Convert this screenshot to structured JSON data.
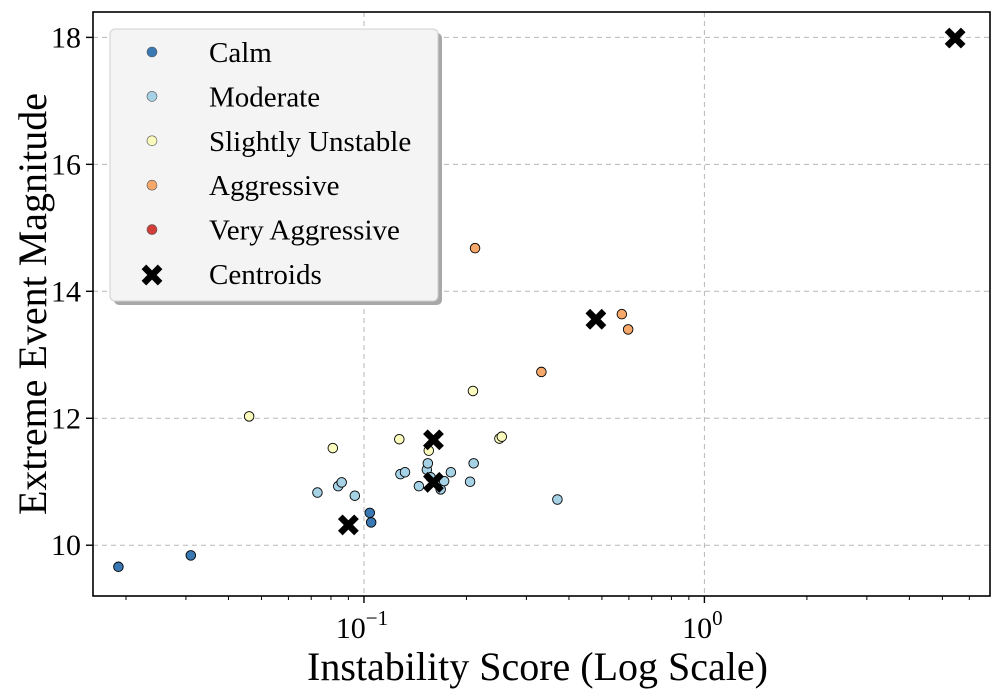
{
  "chart_data": {
    "type": "scatter",
    "title": "",
    "xlabel": "Instability Score (Log Scale)",
    "ylabel": "Extreme Event Magnitude",
    "xscale": "log",
    "xlim": [
      0.016,
      6.9
    ],
    "ylim": [
      9.2,
      18.4
    ],
    "grid": true,
    "legend_position": "top-left",
    "x_ticks": [
      {
        "value": 0.1,
        "base": "10",
        "exp": "−1"
      },
      {
        "value": 1,
        "base": "10",
        "exp": "0"
      }
    ],
    "y_ticks": [
      {
        "value": 10,
        "label": "10"
      },
      {
        "value": 12,
        "label": "12"
      },
      {
        "value": 14,
        "label": "14"
      },
      {
        "value": 16,
        "label": "16"
      },
      {
        "value": 18,
        "label": "18"
      }
    ],
    "series": [
      {
        "name": "Calm",
        "color": "#3a78b4",
        "marker": "circle",
        "points": [
          [
            0.019,
            9.66
          ],
          [
            0.031,
            9.84
          ],
          [
            0.104,
            10.51
          ],
          [
            0.105,
            10.36
          ]
        ]
      },
      {
        "name": "Moderate",
        "color": "#a6d2e6",
        "marker": "circle",
        "points": [
          [
            0.073,
            10.83
          ],
          [
            0.084,
            10.93
          ],
          [
            0.086,
            10.99
          ],
          [
            0.094,
            10.78
          ],
          [
            0.128,
            11.12
          ],
          [
            0.132,
            11.15
          ],
          [
            0.145,
            10.93
          ],
          [
            0.153,
            11.19
          ],
          [
            0.154,
            11.29
          ],
          [
            0.157,
            11.07
          ],
          [
            0.163,
            10.99
          ],
          [
            0.168,
            10.88
          ],
          [
            0.172,
            11.01
          ],
          [
            0.18,
            11.15
          ],
          [
            0.205,
            11.0
          ],
          [
            0.21,
            11.29
          ],
          [
            0.37,
            10.72
          ]
        ]
      },
      {
        "name": "Slightly Unstable",
        "color": "#fbfbbe",
        "marker": "circle",
        "points": [
          [
            0.046,
            12.03
          ],
          [
            0.081,
            11.53
          ],
          [
            0.127,
            11.67
          ],
          [
            0.155,
            11.49
          ],
          [
            0.209,
            12.43
          ],
          [
            0.25,
            11.68
          ],
          [
            0.254,
            11.71
          ]
        ]
      },
      {
        "name": "Aggressive",
        "color": "#f6a76a",
        "marker": "circle",
        "points": [
          [
            0.212,
            14.68
          ],
          [
            0.332,
            12.73
          ],
          [
            0.572,
            13.64
          ],
          [
            0.597,
            13.4
          ]
        ]
      },
      {
        "name": "Very Aggressive",
        "color": "#d13e38",
        "marker": "circle",
        "points": []
      },
      {
        "name": "Centroids",
        "color": "#000000",
        "marker": "x",
        "points": [
          [
            0.09,
            10.32
          ],
          [
            0.16,
            10.99
          ],
          [
            0.16,
            11.66
          ],
          [
            0.48,
            13.56
          ],
          [
            5.45,
            17.99
          ]
        ]
      }
    ]
  }
}
